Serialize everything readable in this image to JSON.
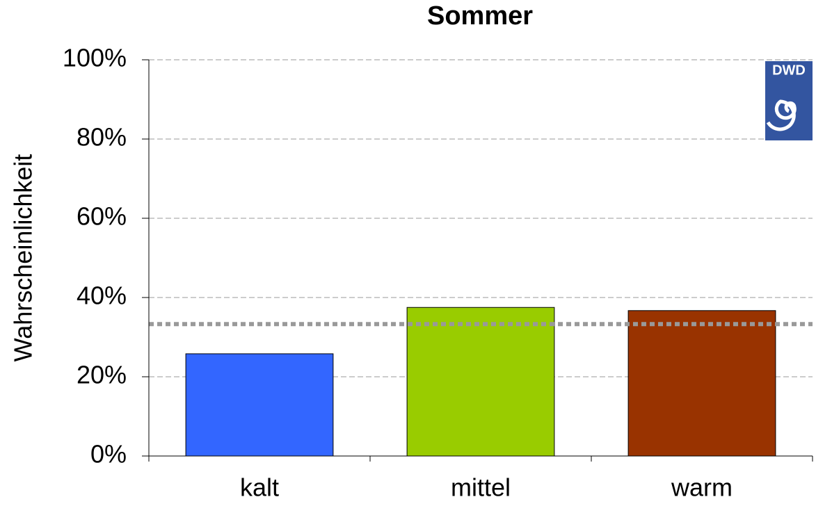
{
  "chart_data": {
    "type": "bar",
    "title": "Sommer",
    "y_label": "Wahrscheinlichkeit",
    "categories": [
      "kalt",
      "mittel",
      "warm"
    ],
    "values": [
      25.8,
      37.5,
      36.7
    ],
    "colors": [
      "#3366ff",
      "#99cc00",
      "#993300"
    ],
    "ylim": [
      0,
      100
    ],
    "yticks": [
      {
        "value": 0,
        "label": "0%"
      },
      {
        "value": 20,
        "label": "20%"
      },
      {
        "value": 40,
        "label": "40%"
      },
      {
        "value": 60,
        "label": "60%"
      },
      {
        "value": 80,
        "label": "80%"
      },
      {
        "value": 100,
        "label": "100%"
      }
    ],
    "grid": true,
    "reference_line": 33.3,
    "logo_text": "DWD"
  }
}
